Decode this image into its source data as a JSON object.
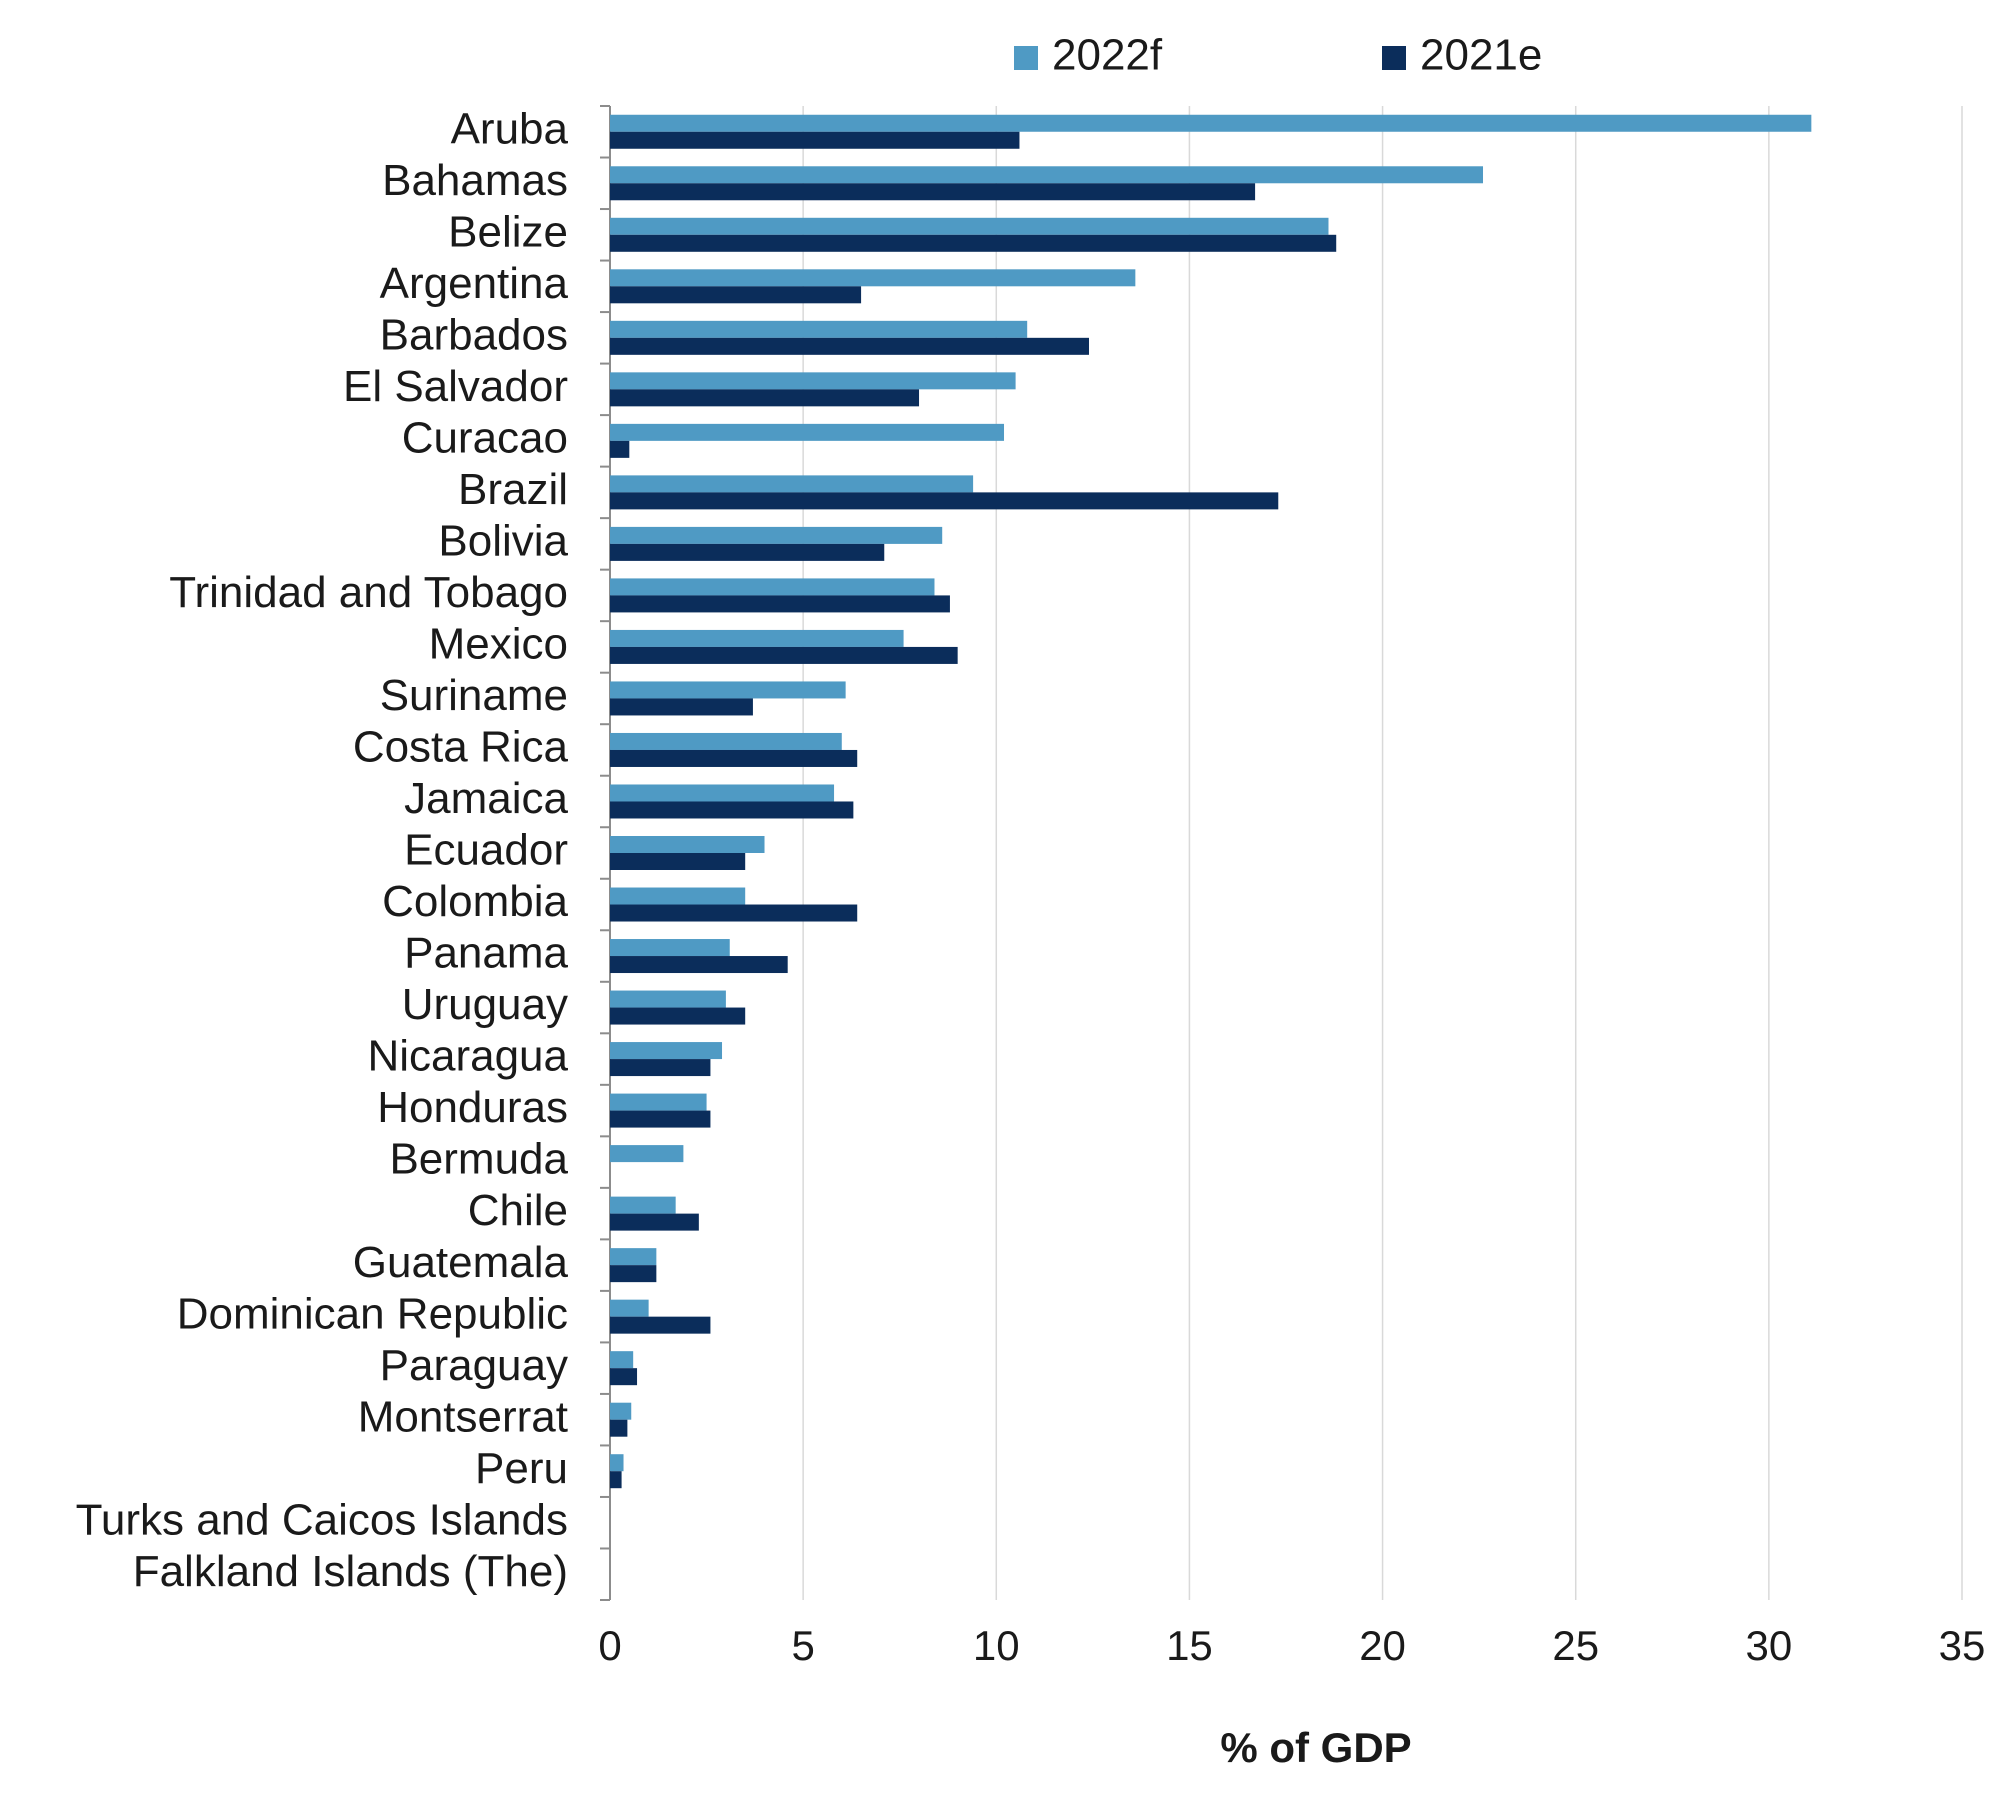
{
  "chart_data": {
    "type": "bar",
    "orientation": "horizontal",
    "categories": [
      "Aruba",
      "Bahamas",
      "Belize",
      "Argentina",
      "Barbados",
      "El Salvador",
      "Curacao",
      "Brazil",
      "Bolivia",
      "Trinidad and Tobago",
      "Mexico",
      "Suriname",
      "Costa Rica",
      "Jamaica",
      "Ecuador",
      "Colombia",
      "Panama",
      "Uruguay",
      "Nicaragua",
      "Honduras",
      "Bermuda",
      "Chile",
      "Guatemala",
      "Dominican Republic",
      "Paraguay",
      "Montserrat",
      "Peru",
      "Turks and Caicos Islands",
      "Falkland Islands (The)"
    ],
    "series": [
      {
        "name": "2022f",
        "color": "#4f9ac4",
        "values": [
          31.1,
          22.6,
          18.6,
          13.6,
          10.8,
          10.5,
          10.2,
          9.4,
          8.6,
          8.4,
          7.6,
          6.1,
          6.0,
          5.8,
          4.0,
          3.5,
          3.1,
          3.0,
          2.9,
          2.5,
          1.9,
          1.7,
          1.2,
          1.0,
          0.6,
          0.55,
          0.35,
          0,
          0
        ]
      },
      {
        "name": "2021e",
        "color": "#0b2d5b",
        "values": [
          10.6,
          16.7,
          18.8,
          6.5,
          12.4,
          8.0,
          0.5,
          17.3,
          7.1,
          8.8,
          9.0,
          3.7,
          6.4,
          6.3,
          3.5,
          6.4,
          4.6,
          3.5,
          2.6,
          2.6,
          0,
          2.3,
          1.2,
          2.6,
          0.7,
          0.45,
          0.3,
          0,
          0
        ]
      }
    ],
    "xlabel": "% of GDP",
    "ylabel": "",
    "xlim": [
      0,
      35
    ],
    "ticks": [
      "0",
      "5",
      "10",
      "15",
      "20",
      "25",
      "30",
      "35"
    ],
    "grid": true,
    "legend_position": "top"
  }
}
